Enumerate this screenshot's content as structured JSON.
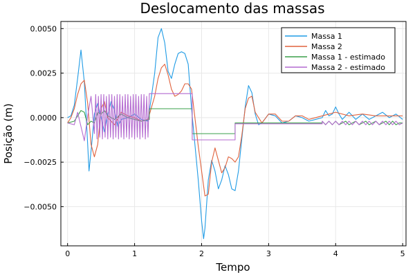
{
  "chart_data": {
    "type": "line",
    "title": "Deslocamento das massas",
    "xlabel": "Tempo",
    "ylabel": "Posição (m)",
    "xlim": [
      -0.1,
      5.05
    ],
    "ylim": [
      -0.0072,
      0.0054
    ],
    "xticks": [
      0,
      1,
      2,
      3,
      4,
      5
    ],
    "xtick_labels": [
      "0",
      "1",
      "2",
      "3",
      "4",
      "5"
    ],
    "yticks": [
      0.005,
      0.0025,
      0.0,
      -0.0025,
      -0.005
    ],
    "ytick_labels": [
      "0.0050",
      "0.0025",
      "0.0000",
      "−0.0025",
      "−0.0050"
    ],
    "grid": true,
    "legend_position": "top-right",
    "series": [
      {
        "name": "Massa 1",
        "color": "#1f9be5",
        "x": [
          0.0,
          0.05,
          0.1,
          0.15,
          0.2,
          0.25,
          0.3,
          0.32,
          0.36,
          0.4,
          0.45,
          0.5,
          0.55,
          0.6,
          0.65,
          0.7,
          0.75,
          0.8,
          0.9,
          1.0,
          1.1,
          1.2,
          1.3,
          1.35,
          1.4,
          1.45,
          1.5,
          1.55,
          1.6,
          1.65,
          1.7,
          1.75,
          1.8,
          1.85,
          1.9,
          1.95,
          2.0,
          2.03,
          2.05,
          2.1,
          2.15,
          2.2,
          2.25,
          2.3,
          2.35,
          2.4,
          2.45,
          2.5,
          2.55,
          2.6,
          2.65,
          2.7,
          2.75,
          2.8,
          2.85,
          2.9,
          3.0,
          3.1,
          3.2,
          3.3,
          3.4,
          3.5,
          3.6,
          3.7,
          3.8,
          3.85,
          3.9,
          3.95,
          4.0,
          4.05,
          4.1,
          4.15,
          4.2,
          4.3,
          4.4,
          4.5,
          4.6,
          4.7,
          4.8,
          4.9,
          5.0
        ],
        "y": [
          0.0,
          0.0001,
          0.0007,
          0.0022,
          0.0038,
          0.002,
          -0.0015,
          -0.003,
          -0.0015,
          0.0002,
          0.0008,
          0.0,
          -0.0008,
          0.0002,
          0.0009,
          0.0004,
          -0.0005,
          -0.0001,
          0.0,
          0.0002,
          -0.0001,
          -0.0002,
          0.0025,
          0.0045,
          0.005,
          0.0042,
          0.0026,
          0.0022,
          0.003,
          0.0036,
          0.0037,
          0.0036,
          0.003,
          0.0005,
          -0.0015,
          -0.0035,
          -0.0058,
          -0.0068,
          -0.0062,
          -0.0035,
          -0.0024,
          -0.003,
          -0.004,
          -0.0035,
          -0.0027,
          -0.0032,
          -0.004,
          -0.0041,
          -0.003,
          -0.0012,
          0.0006,
          0.0018,
          0.0014,
          0.0002,
          -0.0004,
          -0.0003,
          0.0002,
          0.0001,
          -0.0003,
          -0.0002,
          0.0001,
          0.0,
          -0.0002,
          -0.0001,
          0.0,
          0.0004,
          0.0001,
          0.0002,
          0.0006,
          0.0002,
          -0.0001,
          0.0001,
          0.0003,
          -0.0001,
          0.0002,
          -0.0001,
          0.0001,
          0.0003,
          0.0,
          0.0002,
          -0.0001
        ]
      },
      {
        "name": "Massa 2",
        "color": "#e0623d",
        "x": [
          0.0,
          0.05,
          0.1,
          0.15,
          0.2,
          0.25,
          0.3,
          0.35,
          0.4,
          0.45,
          0.5,
          0.55,
          0.6,
          0.7,
          0.8,
          0.9,
          1.0,
          1.1,
          1.2,
          1.3,
          1.35,
          1.4,
          1.45,
          1.5,
          1.55,
          1.6,
          1.65,
          1.7,
          1.75,
          1.8,
          1.85,
          1.9,
          1.95,
          2.0,
          2.05,
          2.1,
          2.15,
          2.2,
          2.25,
          2.3,
          2.35,
          2.4,
          2.45,
          2.5,
          2.55,
          2.6,
          2.65,
          2.7,
          2.75,
          2.8,
          2.9,
          3.0,
          3.1,
          3.2,
          3.3,
          3.4,
          3.5,
          3.6,
          3.8,
          4.0,
          4.2,
          4.4,
          4.6,
          4.8,
          5.0
        ],
        "y": [
          -0.0003,
          0.0,
          0.0005,
          0.0013,
          0.0019,
          0.0021,
          0.0008,
          -0.0015,
          -0.0022,
          -0.0015,
          0.0005,
          0.0009,
          0.0,
          -0.0004,
          0.0003,
          0.0001,
          0.0,
          -0.0002,
          -0.0001,
          0.0012,
          0.0022,
          0.0028,
          0.003,
          0.0024,
          0.0016,
          0.0012,
          0.0013,
          0.0015,
          0.0019,
          0.0019,
          0.0016,
          0.0,
          -0.0016,
          -0.003,
          -0.0044,
          -0.0043,
          -0.0025,
          -0.0017,
          -0.0024,
          -0.0031,
          -0.0028,
          -0.0022,
          -0.0023,
          -0.0025,
          -0.0022,
          -0.001,
          0.0005,
          0.0011,
          0.0012,
          0.0003,
          -0.0003,
          0.0002,
          0.0002,
          -0.0002,
          -0.0002,
          0.0001,
          0.0001,
          -0.0001,
          0.0001,
          0.0003,
          0.0001,
          0.0002,
          0.0001,
          0.0001,
          0.0001
        ]
      },
      {
        "name": "Massa 1 - estimado",
        "color": "#3a9f48",
        "x": [
          0.0,
          0.1,
          0.15,
          0.2,
          0.25,
          0.3,
          0.35,
          0.4,
          0.45,
          0.5,
          0.55,
          0.6,
          0.7,
          0.8,
          0.9,
          1.0,
          1.1,
          1.22,
          1.22,
          1.86,
          1.86,
          2.5,
          2.5,
          3.0,
          3.5,
          3.8,
          3.8,
          3.85,
          3.9,
          3.95,
          4.0,
          4.05,
          4.1,
          4.15,
          4.2,
          4.25,
          4.3,
          4.35,
          4.4,
          4.45,
          4.5,
          4.55,
          4.6,
          4.65,
          4.7,
          4.75,
          4.8,
          4.85,
          4.9,
          4.95,
          5.0
        ],
        "y": [
          -0.0003,
          -0.0002,
          0.0001,
          0.0004,
          0.0003,
          -0.0004,
          -0.0002,
          -0.0003,
          0.0003,
          0.0002,
          0.0004,
          0.0001,
          -0.0001,
          0.0002,
          0.0,
          -0.0001,
          -0.0002,
          -0.0001,
          0.0005,
          0.0005,
          -0.0009,
          -0.0009,
          -0.0003,
          -0.0003,
          -0.0003,
          -0.0003,
          -0.0002,
          -0.0004,
          -0.0002,
          -0.0004,
          -0.0002,
          -0.0004,
          -0.0003,
          -0.0002,
          -0.0004,
          -0.0003,
          -0.0002,
          -0.0004,
          -0.0003,
          -0.0002,
          -0.0004,
          -0.0003,
          -0.0002,
          -0.0004,
          -0.0003,
          -0.0002,
          -0.0004,
          -0.0002,
          -0.0004,
          -0.0003,
          -0.0003
        ]
      },
      {
        "name": "Massa 2 - estimado",
        "color": "#b46ad0",
        "x": [
          0.0,
          0.1,
          0.15,
          0.2,
          0.25,
          0.3,
          0.35,
          0.4,
          0.42,
          0.44,
          0.46,
          0.48,
          0.5,
          0.52,
          0.54,
          0.56,
          0.58,
          0.6,
          0.62,
          0.64,
          0.66,
          0.68,
          0.7,
          0.72,
          0.74,
          0.76,
          0.78,
          0.8,
          0.82,
          0.84,
          0.86,
          0.88,
          0.9,
          0.92,
          0.94,
          0.96,
          0.98,
          1.0,
          1.02,
          1.04,
          1.06,
          1.08,
          1.1,
          1.12,
          1.14,
          1.16,
          1.18,
          1.2,
          1.22,
          1.22,
          1.86,
          1.86,
          2.5,
          2.5,
          3.0,
          3.5,
          3.8,
          3.8,
          3.85,
          3.9,
          3.95,
          4.0,
          4.05,
          4.1,
          4.15,
          4.2,
          4.25,
          4.3,
          4.35,
          4.4,
          4.45,
          4.5,
          4.55,
          4.6,
          4.65,
          4.7,
          4.75,
          4.8,
          4.85,
          4.9,
          4.95,
          5.0
        ],
        "y": [
          -0.0003,
          -0.0004,
          0.0003,
          -0.0005,
          -0.0013,
          0.0001,
          0.0012,
          -0.0009,
          0.0013,
          -0.0012,
          0.0012,
          -0.0011,
          0.0013,
          -0.0012,
          0.0013,
          -0.0011,
          0.0012,
          -0.0012,
          0.0013,
          -0.0011,
          0.0013,
          -0.0012,
          0.0012,
          -0.0011,
          0.0013,
          -0.0012,
          0.0013,
          -0.0011,
          0.0012,
          -0.0012,
          0.0013,
          -0.0011,
          0.0013,
          -0.0012,
          0.0012,
          -0.0011,
          0.0013,
          -0.0012,
          0.0013,
          -0.0011,
          0.0012,
          -0.0012,
          0.0013,
          -0.0011,
          0.0013,
          -0.0012,
          0.0012,
          -0.0011,
          0.0013,
          0.00135,
          0.00135,
          -0.00125,
          -0.00125,
          -0.00035,
          -0.00035,
          -0.00035,
          -0.00035,
          -0.0002,
          -0.0004,
          -0.0002,
          -0.0004,
          -0.0002,
          -0.0004,
          -0.0002,
          -0.0004,
          -0.0002,
          -0.0004,
          -0.0002,
          -0.0004,
          -0.0002,
          -0.0004,
          -0.0002,
          -0.0004,
          -0.0002,
          -0.0004,
          -0.0002,
          -0.0004,
          -0.0002,
          -0.0004,
          -0.0002,
          -0.0004,
          -0.0003
        ]
      }
    ]
  }
}
